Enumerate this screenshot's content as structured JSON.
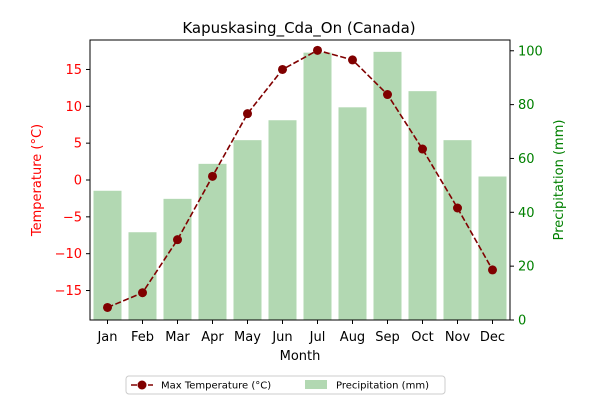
{
  "chart_data": {
    "type": "bar+line",
    "title": "Kapuskasing_Cda_On (Canada)",
    "xlabel": "Month",
    "ylabel_left": "Temperature (°C)",
    "ylabel_right": "Precipitation (mm)",
    "categories": [
      "Jan",
      "Feb",
      "Mar",
      "Apr",
      "May",
      "Jun",
      "Jul",
      "Aug",
      "Sep",
      "Oct",
      "Nov",
      "Dec"
    ],
    "ylim_left": [
      -19,
      19
    ],
    "yticks_left": [
      -15,
      -10,
      -5,
      0,
      5,
      10,
      15
    ],
    "yticks_left_labels": [
      "−15",
      "−10",
      "−5",
      "0",
      "5",
      "10",
      "15"
    ],
    "ylim_right": [
      0,
      104
    ],
    "yticks_right": [
      0,
      20,
      40,
      60,
      80,
      100
    ],
    "series": [
      {
        "name": "Max Temperature (°C)",
        "kind": "line",
        "axis": "left",
        "color": "#800000",
        "linestyle": "dashed",
        "marker": "circle",
        "values": [
          -17.3,
          -15.3,
          -8.1,
          0.5,
          9.0,
          15.0,
          17.6,
          16.3,
          11.6,
          4.2,
          -3.8,
          -12.2
        ]
      },
      {
        "name": "Precipitation (mm)",
        "kind": "bar",
        "axis": "right",
        "color": "#b2d8b2",
        "values": [
          48.0,
          32.6,
          45.0,
          58.0,
          66.8,
          74.2,
          99.3,
          79.0,
          99.6,
          85.0,
          66.8,
          53.3
        ]
      }
    ],
    "colors": {
      "left_axis": "#ff0000",
      "right_axis": "#008000"
    },
    "legend_position": "bottom-center",
    "grid": false
  }
}
